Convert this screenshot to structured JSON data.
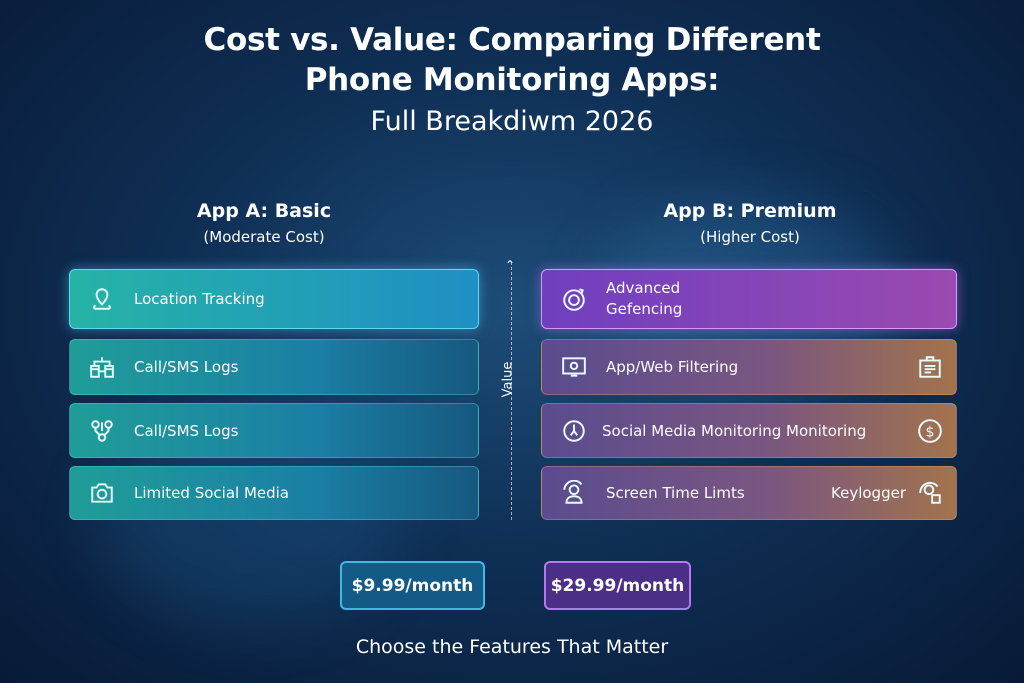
{
  "title": {
    "line1": "Cost vs. Value: Comparing Different",
    "line2": "Phone Monitoring Apps:",
    "subtitle": "Full Breakdiwm 2026"
  },
  "app_a": {
    "name": "App A: Basic",
    "cost": "(Moderate Cost)",
    "price": "$9.99/month",
    "accent": "#1f9d98",
    "features": [
      {
        "label": "Location Tracking",
        "icon": "location-pin-icon"
      },
      {
        "label": "Call/SMS Logs",
        "icon": "database-flow-icon"
      },
      {
        "label": "Call/SMS Logs",
        "icon": "nodes-icon"
      },
      {
        "label": "Limited Social Media",
        "icon": "camera-icon"
      }
    ]
  },
  "app_b": {
    "name": "App B: Premium",
    "cost": "(Higher Cost)",
    "price": "$29.99/month",
    "accent": "#7a4ab8",
    "features": [
      {
        "label": "Advanced\nGefencing",
        "icon": "target-icon"
      },
      {
        "label": "App/Web Filtering",
        "icon": "monitor-icon",
        "right_icon": "clipboard-icon"
      },
      {
        "label": "Social Media Monitoring Monitoring",
        "icon": "refresh-pin-icon",
        "right_icon": "dollar-icon"
      },
      {
        "label": "Screen Time Limts",
        "icon": "user-cycle-icon",
        "right_label": "Keylogger",
        "right_icon": "user-lock-icon"
      }
    ]
  },
  "axis": {
    "label": "Value"
  },
  "footer": "Choose the Features That Matter"
}
